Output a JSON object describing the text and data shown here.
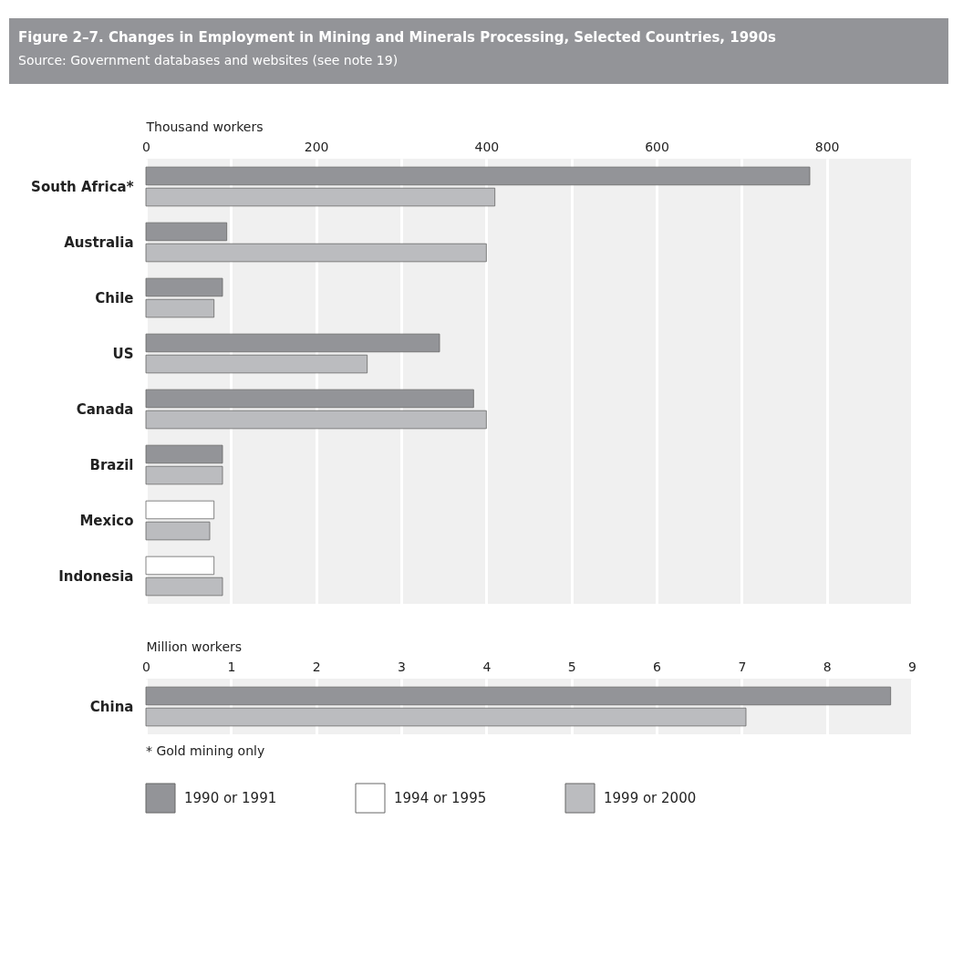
{
  "chart_data": [
    {
      "type": "bar",
      "orientation": "horizontal",
      "title": "Figure 2–7. Changes in Employment in Mining and Minerals Processing, Selected Countries, 1990s",
      "subtitle": "Source: Government databases and websites (see note 19)",
      "xlabel": "Thousand workers",
      "categories": [
        "South Africa*",
        "Australia",
        "Chile",
        "US",
        "Canada",
        "Brazil",
        "Mexico",
        "Indonesia"
      ],
      "series": [
        {
          "name": "1990 or 1991",
          "color": "#939498",
          "values": [
            780,
            95,
            90,
            345,
            385,
            90,
            null,
            null
          ]
        },
        {
          "name": "1994 or 1995",
          "color": "#ffffff",
          "values": [
            null,
            null,
            null,
            null,
            null,
            null,
            80,
            80
          ]
        },
        {
          "name": "1999 or 2000",
          "color": "#bbbcbf",
          "values": [
            410,
            400,
            80,
            260,
            400,
            90,
            75,
            90
          ]
        }
      ],
      "xlim": [
        0,
        900
      ],
      "xticks": [
        0,
        {
          "value": 100,
          "label": null
        },
        200,
        {
          "value": 300,
          "label": null
        },
        400,
        {
          "value": 500,
          "label": null
        },
        600,
        {
          "value": 700,
          "label": null
        },
        800,
        {
          "value": 900,
          "label": null
        }
      ],
      "grid": "x",
      "legend": "bottom"
    },
    {
      "type": "bar",
      "orientation": "horizontal",
      "xlabel": "Million workers",
      "categories": [
        "China"
      ],
      "series": [
        {
          "name": "1990 or 1991",
          "color": "#939498",
          "values": [
            8.75
          ]
        },
        {
          "name": "1999 or 2000",
          "color": "#bbbcbf",
          "values": [
            7.05
          ]
        }
      ],
      "xlim": [
        0,
        9
      ],
      "xticks": [
        0,
        1,
        2,
        3,
        4,
        5,
        6,
        7,
        8,
        9
      ],
      "grid": "x",
      "annotations": [
        "* Gold mining only"
      ]
    }
  ]
}
